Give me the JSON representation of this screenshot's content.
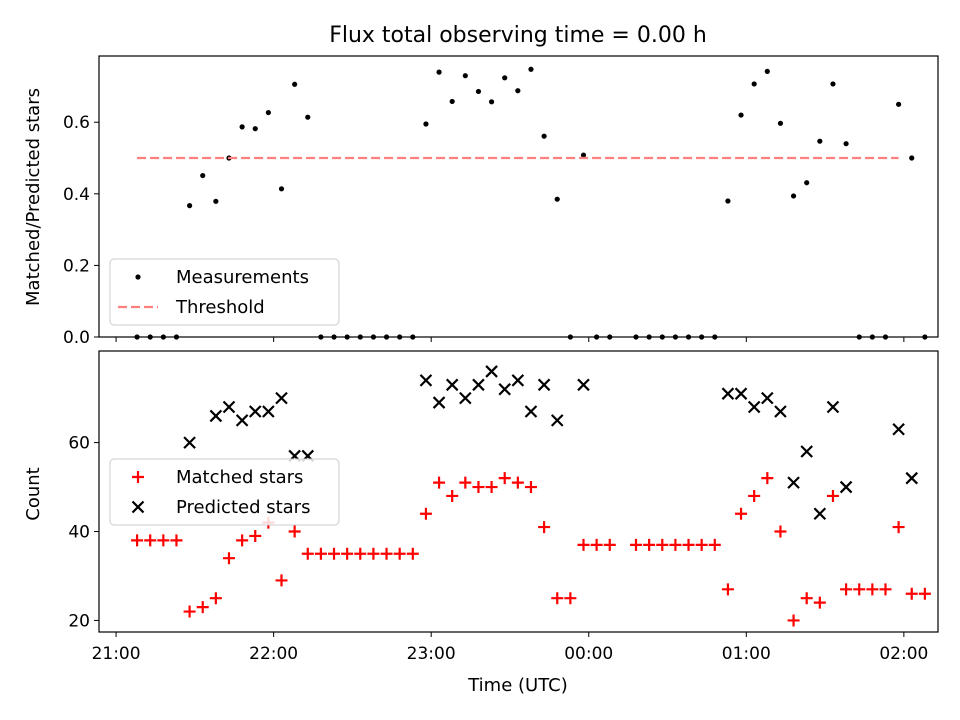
{
  "chart_data": {
    "title": "Flux total observing time = 0.00 h",
    "xlabel": "Time (UTC)",
    "x_ticks": [
      "21:00",
      "22:00",
      "23:00",
      "00:00",
      "01:00",
      "02:00"
    ],
    "x_range_minutes": [
      -6.5,
      313
    ],
    "panels": [
      {
        "type": "scatter",
        "ylabel": "Matched/Predicted stars",
        "ylim": [
          0,
          0.785
        ],
        "y_ticks": [
          "0.0",
          "0.2",
          "0.4",
          "0.6"
        ],
        "legend": {
          "placement": "lower-left"
        },
        "series": [
          {
            "name": "Measurements",
            "marker": "dot",
            "color": "#000000",
            "points": [
              [
                8,
                0
              ],
              [
                13,
                0
              ],
              [
                18,
                0
              ],
              [
                23,
                0
              ],
              [
                28,
                0.367
              ],
              [
                33,
                0.451
              ],
              [
                38,
                0.379
              ],
              [
                43,
                0.5
              ],
              [
                48,
                0.587
              ],
              [
                53,
                0.582
              ],
              [
                58,
                0.627
              ],
              [
                63,
                0.414
              ],
              [
                68,
                0.706
              ],
              [
                73,
                0.614
              ],
              [
                78,
                0
              ],
              [
                83,
                0
              ],
              [
                88,
                0
              ],
              [
                93,
                0
              ],
              [
                98,
                0
              ],
              [
                103,
                0
              ],
              [
                108,
                0
              ],
              [
                113,
                0
              ],
              [
                118,
                0.595
              ],
              [
                123,
                0.74
              ],
              [
                128,
                0.658
              ],
              [
                133,
                0.73
              ],
              [
                138,
                0.686
              ],
              [
                143,
                0.657
              ],
              [
                148,
                0.724
              ],
              [
                153,
                0.688
              ],
              [
                158,
                0.748
              ],
              [
                163,
                0.561
              ],
              [
                168,
                0.385
              ],
              [
                173,
                0
              ],
              [
                178,
                0.508
              ],
              [
                183,
                0
              ],
              [
                188,
                0
              ],
              [
                198,
                0
              ],
              [
                203,
                0
              ],
              [
                208,
                0
              ],
              [
                213,
                0
              ],
              [
                218,
                0
              ],
              [
                223,
                0
              ],
              [
                228,
                0
              ],
              [
                233,
                0.38
              ],
              [
                238,
                0.62
              ],
              [
                243,
                0.707
              ],
              [
                248,
                0.742
              ],
              [
                253,
                0.597
              ],
              [
                258,
                0.394
              ],
              [
                263,
                0.431
              ],
              [
                268,
                0.547
              ],
              [
                273,
                0.707
              ],
              [
                278,
                0.54
              ],
              [
                283,
                0
              ],
              [
                288,
                0
              ],
              [
                293,
                0
              ],
              [
                298,
                0.65
              ],
              [
                303,
                0.5
              ],
              [
                308,
                0
              ]
            ]
          },
          {
            "name": "Threshold",
            "type": "line",
            "style": "dashed",
            "color": "#ff7f7f",
            "points": [
              [
                8,
                0.5
              ],
              [
                298,
                0.5
              ]
            ]
          }
        ]
      },
      {
        "type": "scatter",
        "ylabel": "Count",
        "ylim": [
          17.4,
          80.6
        ],
        "y_ticks": [
          "20",
          "40",
          "60"
        ],
        "legend": {
          "placement": "center-left"
        },
        "series": [
          {
            "name": "Matched stars",
            "marker": "plus",
            "color": "#ff0000",
            "points": [
              [
                8,
                38
              ],
              [
                13,
                38
              ],
              [
                18,
                38
              ],
              [
                23,
                38
              ],
              [
                28,
                22
              ],
              [
                33,
                23
              ],
              [
                38,
                25
              ],
              [
                43,
                34
              ],
              [
                48,
                38
              ],
              [
                53,
                39
              ],
              [
                58,
                42
              ],
              [
                63,
                29
              ],
              [
                68,
                40
              ],
              [
                73,
                35
              ],
              [
                78,
                35
              ],
              [
                83,
                35
              ],
              [
                88,
                35
              ],
              [
                93,
                35
              ],
              [
                98,
                35
              ],
              [
                103,
                35
              ],
              [
                108,
                35
              ],
              [
                113,
                35
              ],
              [
                118,
                44
              ],
              [
                123,
                51
              ],
              [
                128,
                48
              ],
              [
                133,
                51
              ],
              [
                138,
                50
              ],
              [
                143,
                50
              ],
              [
                148,
                52
              ],
              [
                153,
                51
              ],
              [
                158,
                50
              ],
              [
                163,
                41
              ],
              [
                168,
                25
              ],
              [
                173,
                25
              ],
              [
                178,
                37
              ],
              [
                183,
                37
              ],
              [
                188,
                37
              ],
              [
                198,
                37
              ],
              [
                203,
                37
              ],
              [
                208,
                37
              ],
              [
                213,
                37
              ],
              [
                218,
                37
              ],
              [
                223,
                37
              ],
              [
                228,
                37
              ],
              [
                233,
                27
              ],
              [
                238,
                44
              ],
              [
                243,
                48
              ],
              [
                248,
                52
              ],
              [
                253,
                40
              ],
              [
                258,
                20
              ],
              [
                263,
                25
              ],
              [
                268,
                24
              ],
              [
                273,
                48
              ],
              [
                278,
                27
              ],
              [
                283,
                27
              ],
              [
                288,
                27
              ],
              [
                293,
                27
              ],
              [
                298,
                41
              ],
              [
                303,
                26
              ],
              [
                308,
                26
              ]
            ]
          },
          {
            "name": "Predicted stars",
            "marker": "x",
            "color": "#000000",
            "points": [
              [
                28,
                60
              ],
              [
                38,
                66
              ],
              [
                43,
                68
              ],
              [
                48,
                65
              ],
              [
                53,
                67
              ],
              [
                58,
                67
              ],
              [
                63,
                70
              ],
              [
                68,
                57
              ],
              [
                73,
                57
              ],
              [
                118,
                74
              ],
              [
                123,
                69
              ],
              [
                128,
                73
              ],
              [
                133,
                70
              ],
              [
                138,
                73
              ],
              [
                143,
                76
              ],
              [
                148,
                72
              ],
              [
                153,
                74
              ],
              [
                158,
                67
              ],
              [
                163,
                73
              ],
              [
                168,
                65
              ],
              [
                178,
                73
              ],
              [
                233,
                71
              ],
              [
                238,
                71
              ],
              [
                243,
                68
              ],
              [
                248,
                70
              ],
              [
                253,
                67
              ],
              [
                258,
                51
              ],
              [
                263,
                58
              ],
              [
                268,
                44
              ],
              [
                273,
                68
              ],
              [
                278,
                50
              ],
              [
                298,
                63
              ],
              [
                303,
                52
              ]
            ]
          }
        ]
      }
    ]
  }
}
